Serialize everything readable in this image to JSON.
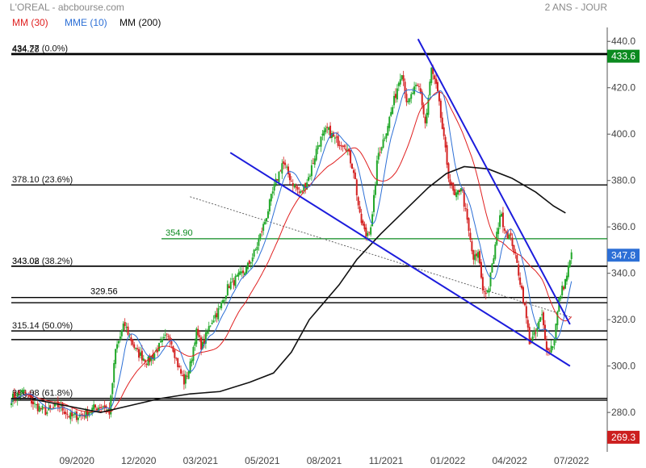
{
  "header": {
    "title": "L'OREAL - abcbourse.com",
    "period": "2 ANS - JOUR"
  },
  "legend": [
    {
      "label": "MM (30)",
      "color": "#e02020"
    },
    {
      "label": "MME (10)",
      "color": "#2c6fd6"
    },
    {
      "label": "MM (200)",
      "color": "#111111"
    }
  ],
  "chart_data": {
    "type": "candlestick",
    "y_axis": {
      "range": [
        263,
        446
      ],
      "ticks": [
        280,
        300,
        320,
        340,
        360,
        380,
        400,
        420,
        440
      ],
      "tick_labels": [
        "280.0",
        "300.0",
        "320.0",
        "340.0",
        "360.0",
        "380.0",
        "400.0",
        "420.0",
        "440.0"
      ],
      "side": "right",
      "grid": false
    },
    "x_axis": {
      "tick_labels": [
        "09/2020",
        "12/2020",
        "03/2021",
        "05/2021",
        "08/2021",
        "11/2021",
        "01/2022",
        "04/2022",
        "07/2022"
      ]
    },
    "price_markers": [
      {
        "value": 433.6,
        "label": "433.6",
        "color": "#0b8a1f"
      },
      {
        "value": 347.8,
        "label": "347.8",
        "color": "#2c6fd6"
      },
      {
        "value": 269.3,
        "label": "269.3",
        "color": "#cc1f1f"
      }
    ],
    "fib_levels": [
      {
        "value": 434.77,
        "label": "434.77  (0.0%)"
      },
      {
        "value": 434.28,
        "label": "434.28"
      },
      {
        "value": 378.1,
        "label": "378.10  (23.6%)"
      },
      {
        "value": 343.08,
        "label": "343.08  (38.2%)"
      },
      {
        "value": 343.02,
        "label": "343.02"
      },
      {
        "value": 315.14,
        "label": "315.14  (50.0%)"
      },
      {
        "value": 311.4,
        "label": ""
      },
      {
        "value": 286.08,
        "label": "286.08  (61.8%)"
      },
      {
        "value": 285.3,
        "label": "285.3"
      }
    ],
    "horizontal_lines": [
      {
        "value": 354.9,
        "label": "354.90",
        "color": "#0b8a1f"
      },
      {
        "value": 329.56,
        "label": "329.56",
        "color": "#000000"
      },
      {
        "value": 327.3,
        "label": "",
        "color": "#000000"
      }
    ],
    "trendlines": [
      {
        "from": {
          "x": 0.3675,
          "y": 392
        },
        "to": {
          "x": 0.9375,
          "y": 300
        },
        "color": "#1c1cdc"
      },
      {
        "from": {
          "x": 0.6825,
          "y": 441
        },
        "to": {
          "x": 0.9375,
          "y": 318
        },
        "color": "#1c1cdc"
      }
    ],
    "dotted_trendline": {
      "from": {
        "x": 0.3,
        "y": 373
      },
      "to": {
        "x": 0.94,
        "y": 321
      }
    },
    "sma200": [
      [
        0.0,
        286
      ],
      [
        0.03,
        286
      ],
      [
        0.07,
        284
      ],
      [
        0.11,
        282
      ],
      [
        0.15,
        280
      ],
      [
        0.2,
        283
      ],
      [
        0.25,
        286
      ],
      [
        0.3,
        288
      ],
      [
        0.35,
        289
      ],
      [
        0.4,
        293
      ],
      [
        0.44,
        297
      ],
      [
        0.47,
        306
      ],
      [
        0.5,
        320
      ],
      [
        0.55,
        335
      ],
      [
        0.58,
        346
      ],
      [
        0.62,
        357
      ],
      [
        0.66,
        367
      ],
      [
        0.7,
        377
      ],
      [
        0.73,
        383
      ],
      [
        0.76,
        386
      ],
      [
        0.8,
        385
      ],
      [
        0.84,
        381
      ],
      [
        0.88,
        375
      ],
      [
        0.91,
        369
      ],
      [
        0.93,
        366
      ]
    ],
    "price_path": [
      [
        0.0,
        286
      ],
      [
        0.02,
        289
      ],
      [
        0.04,
        283
      ],
      [
        0.06,
        280
      ],
      [
        0.08,
        283
      ],
      [
        0.1,
        278
      ],
      [
        0.12,
        279
      ],
      [
        0.14,
        282
      ],
      [
        0.155,
        283
      ],
      [
        0.165,
        280
      ],
      [
        0.175,
        307
      ],
      [
        0.19,
        318
      ],
      [
        0.21,
        306
      ],
      [
        0.23,
        302
      ],
      [
        0.25,
        309
      ],
      [
        0.265,
        314
      ],
      [
        0.28,
        300
      ],
      [
        0.29,
        293
      ],
      [
        0.3,
        300
      ],
      [
        0.31,
        315
      ],
      [
        0.32,
        308
      ],
      [
        0.335,
        319
      ],
      [
        0.35,
        325
      ],
      [
        0.365,
        335
      ],
      [
        0.38,
        338
      ],
      [
        0.395,
        342
      ],
      [
        0.41,
        350
      ],
      [
        0.425,
        362
      ],
      [
        0.44,
        376
      ],
      [
        0.455,
        388
      ],
      [
        0.47,
        380
      ],
      [
        0.485,
        374
      ],
      [
        0.5,
        382
      ],
      [
        0.515,
        396
      ],
      [
        0.53,
        402
      ],
      [
        0.545,
        397
      ],
      [
        0.56,
        396
      ],
      [
        0.575,
        384
      ],
      [
        0.585,
        364
      ],
      [
        0.595,
        356
      ],
      [
        0.605,
        362
      ],
      [
        0.615,
        391
      ],
      [
        0.625,
        398
      ],
      [
        0.64,
        412
      ],
      [
        0.655,
        428
      ],
      [
        0.665,
        412
      ],
      [
        0.675,
        419
      ],
      [
        0.685,
        420
      ],
      [
        0.695,
        404
      ],
      [
        0.705,
        428
      ],
      [
        0.715,
        418
      ],
      [
        0.725,
        399
      ],
      [
        0.735,
        380
      ],
      [
        0.745,
        372
      ],
      [
        0.755,
        378
      ],
      [
        0.765,
        362
      ],
      [
        0.775,
        346
      ],
      [
        0.785,
        348
      ],
      [
        0.79,
        333
      ],
      [
        0.8,
        332
      ],
      [
        0.81,
        348
      ],
      [
        0.82,
        366
      ],
      [
        0.83,
        358
      ],
      [
        0.84,
        354
      ],
      [
        0.85,
        342
      ],
      [
        0.86,
        328
      ],
      [
        0.87,
        310
      ],
      [
        0.88,
        314
      ],
      [
        0.89,
        322
      ],
      [
        0.9,
        306
      ],
      [
        0.91,
        310
      ],
      [
        0.92,
        330
      ],
      [
        0.93,
        337
      ],
      [
        0.94,
        347.8
      ]
    ]
  }
}
